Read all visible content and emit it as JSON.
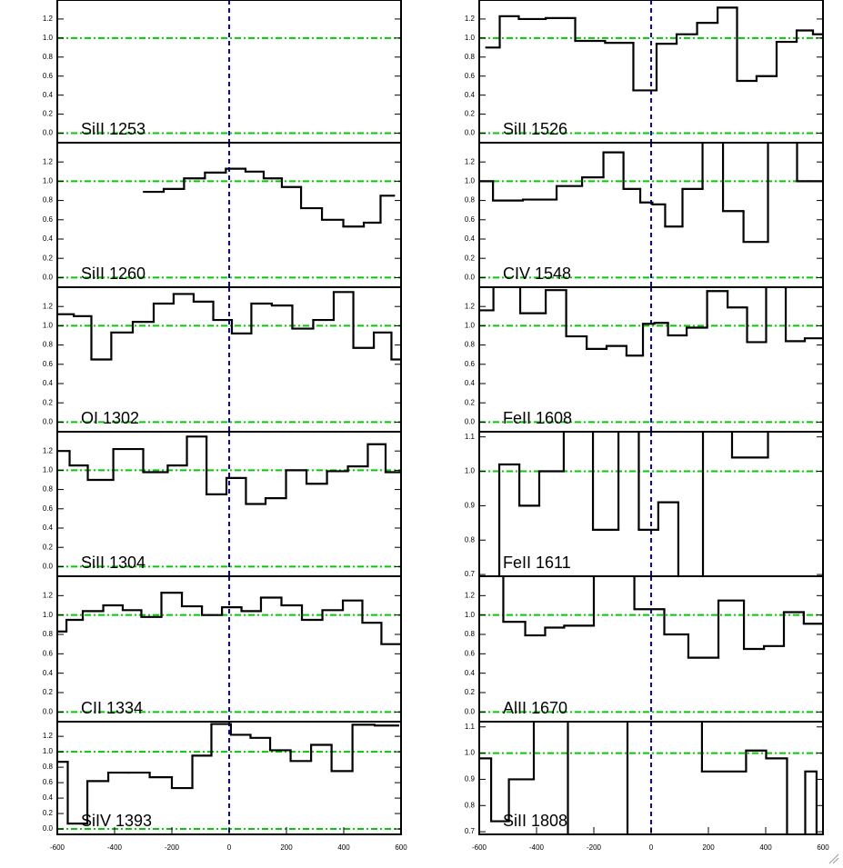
{
  "chart_data": [
    {
      "type": "line",
      "step": true,
      "label": "SiII 1253",
      "color": "#000000",
      "xlim": [
        -600,
        600
      ],
      "ylim": [
        -0.1,
        1.4
      ],
      "yticks": [
        {
          "value": 0,
          "label": "0.0"
        },
        0.2,
        0.4,
        0.6,
        0.8,
        {
          "value": 1,
          "label": "1.0"
        },
        1.2
      ],
      "hlines": [
        0,
        1
      ],
      "vline": 0,
      "x": [],
      "values": []
    },
    {
      "type": "line",
      "step": true,
      "label": "SiII 1526",
      "color": "#000000",
      "xlim": [
        -600,
        600
      ],
      "ylim": [
        -0.1,
        1.4
      ],
      "yticks": [
        {
          "value": 0,
          "label": "0.0"
        },
        0.2,
        0.4,
        0.6,
        0.8,
        {
          "value": 1,
          "label": "1.0"
        },
        1.2
      ],
      "hlines": [
        0,
        1
      ],
      "vline": 0,
      "x": [
        -552,
        -505,
        -419,
        -317,
        -213,
        -108,
        -16,
        54,
        124,
        197,
        267,
        333,
        403,
        473,
        543,
        587
      ],
      "values": [
        0.9,
        1.23,
        1.2,
        1.21,
        0.97,
        0.95,
        0.45,
        0.94,
        1.04,
        1.16,
        1.32,
        0.55,
        0.6,
        0.96,
        1.08,
        1.04
      ]
    },
    {
      "type": "line",
      "step": true,
      "label": "SiII 1260",
      "color": "#000000",
      "xlim": [
        -600,
        600
      ],
      "ylim": [
        -0.1,
        1.4
      ],
      "yticks": [
        {
          "value": 0,
          "label": "0.0"
        },
        0.2,
        0.4,
        0.6,
        0.8,
        {
          "value": 1,
          "label": "1.0"
        },
        1.2
      ],
      "hlines": [
        0,
        1
      ],
      "vline": 0,
      "x": [
        -263,
        -194,
        -121,
        -48,
        25,
        89,
        152,
        216,
        286,
        362,
        435,
        505,
        552
      ],
      "values": [
        0.89,
        0.92,
        1.03,
        1.09,
        1.13,
        1.1,
        1.03,
        0.94,
        0.72,
        0.6,
        0.53,
        0.57,
        0.85
      ]
    },
    {
      "type": "line",
      "step": true,
      "label": "CIV 1548",
      "color": "#000000",
      "xlim": [
        -600,
        600
      ],
      "ylim": [
        -0.1,
        1.4
      ],
      "yticks": [
        {
          "value": 0,
          "label": "0.0"
        },
        0.2,
        0.4,
        0.6,
        0.8,
        {
          "value": 1,
          "label": "1.0"
        },
        1.2
      ],
      "hlines": [
        0,
        1
      ],
      "vline": 0,
      "x": [
        -590,
        -514,
        -381,
        -279,
        -203,
        -130,
        -63,
        -13,
        22,
        76,
        143,
        216,
        286,
        359,
        457,
        562
      ],
      "values": [
        1.0,
        0.8,
        0.81,
        0.95,
        1.04,
        1.3,
        0.92,
        0.78,
        0.76,
        0.53,
        0.92,
        1.6,
        0.69,
        0.37,
        1.6,
        1.0
      ]
    },
    {
      "type": "line",
      "step": true,
      "label": "OI 1302",
      "color": "#000000",
      "xlim": [
        -600,
        600
      ],
      "ylim": [
        -0.1,
        1.4
      ],
      "yticks": [
        {
          "value": 0,
          "label": "0.0"
        },
        0.2,
        0.4,
        0.6,
        0.8,
        {
          "value": 1,
          "label": "1.0"
        },
        1.2
      ],
      "hlines": [
        0,
        1
      ],
      "vline": 0,
      "x": [
        -571,
        -514,
        -448,
        -375,
        -298,
        -229,
        -159,
        -89,
        -22,
        41,
        114,
        184,
        257,
        330,
        400,
        467,
        543,
        590
      ],
      "values": [
        1.12,
        1.1,
        0.65,
        0.93,
        1.04,
        1.23,
        1.33,
        1.25,
        1.06,
        0.92,
        1.23,
        1.21,
        0.97,
        1.06,
        1.35,
        0.77,
        0.93,
        0.65
      ]
    },
    {
      "type": "line",
      "step": true,
      "label": "FeII 1608",
      "color": "#000000",
      "xlim": [
        -600,
        600
      ],
      "ylim": [
        -0.1,
        1.4
      ],
      "yticks": [
        {
          "value": 0,
          "label": "0.0"
        },
        0.2,
        0.4,
        0.6,
        0.8,
        {
          "value": 1,
          "label": "1.0"
        },
        1.2
      ],
      "hlines": [
        0,
        1
      ],
      "vline": 0,
      "x": [
        -590,
        -511,
        -403,
        -333,
        -260,
        -190,
        -121,
        -51,
        -6,
        29,
        89,
        159,
        232,
        302,
        368,
        435,
        505,
        568
      ],
      "values": [
        1.16,
        1.6,
        1.13,
        1.37,
        0.89,
        0.76,
        0.79,
        0.69,
        1.02,
        1.03,
        0.9,
        0.98,
        1.36,
        1.19,
        0.83,
        1.6,
        0.84,
        0.87
      ]
    },
    {
      "type": "line",
      "step": true,
      "label": "SiII 1304",
      "color": "#000000",
      "xlim": [
        -600,
        600
      ],
      "ylim": [
        -0.1,
        1.4
      ],
      "yticks": [
        {
          "value": 0,
          "label": "0.0"
        },
        0.2,
        0.4,
        0.6,
        0.8,
        {
          "value": 1,
          "label": "1.0"
        },
        1.2
      ],
      "hlines": [
        0,
        1
      ],
      "vline": 0,
      "x": [
        -584,
        -530,
        -457,
        -352,
        -248,
        -181,
        -114,
        -44,
        25,
        92,
        162,
        235,
        305,
        378,
        451,
        517,
        575
      ],
      "values": [
        1.2,
        1.05,
        0.9,
        1.22,
        0.98,
        1.05,
        1.35,
        0.75,
        0.92,
        0.65,
        0.71,
        1.0,
        0.86,
        0.99,
        1.04,
        1.27,
        0.98
      ]
    },
    {
      "type": "line",
      "step": true,
      "label": "FeII 1611",
      "color": "#000000",
      "xlim": [
        -600,
        600
      ],
      "ylim": [
        0.695,
        1.115
      ],
      "yticks": [
        0.7,
        0.8,
        0.9,
        {
          "value": 1,
          "label": "1.0"
        },
        1.1
      ],
      "hlines": [
        1
      ],
      "vline": 0,
      "x": [
        -565,
        -495,
        -425,
        -356,
        -254,
        -152,
        -76,
        -10,
        60,
        130,
        232,
        333,
        483
      ],
      "values": [
        0.6,
        1.02,
        0.9,
        1.0,
        1.2,
        0.83,
        1.2,
        0.83,
        0.91,
        0.6,
        1.2,
        1.04,
        1.2
      ]
    },
    {
      "type": "line",
      "step": true,
      "label": "CII 1334",
      "color": "#000000",
      "xlim": [
        -600,
        600
      ],
      "ylim": [
        -0.1,
        1.4
      ],
      "yticks": [
        {
          "value": 0,
          "label": "0.0"
        },
        0.2,
        0.4,
        0.6,
        0.8,
        {
          "value": 1,
          "label": "1.0"
        },
        1.2
      ],
      "hlines": [
        0,
        1
      ],
      "vline": 0,
      "x": [
        -590,
        -546,
        -476,
        -403,
        -340,
        -273,
        -200,
        -130,
        -60,
        10,
        76,
        146,
        219,
        289,
        362,
        432,
        498,
        565
      ],
      "values": [
        0.83,
        0.95,
        1.04,
        1.1,
        1.05,
        0.98,
        1.23,
        1.09,
        1.0,
        1.08,
        1.04,
        1.18,
        1.1,
        0.95,
        1.05,
        1.15,
        0.92,
        0.7
      ]
    },
    {
      "type": "line",
      "step": true,
      "label": "AlII 1670",
      "color": "#000000",
      "xlim": [
        -600,
        600
      ],
      "ylim": [
        -0.1,
        1.4
      ],
      "yticks": [
        {
          "value": 0,
          "label": "0.0"
        },
        0.2,
        0.4,
        0.6,
        0.8,
        {
          "value": 1,
          "label": "1.0"
        },
        1.2
      ],
      "hlines": [
        0,
        1
      ],
      "vline": 0,
      "x": [
        -556,
        -476,
        -403,
        -337,
        -270,
        -130,
        13,
        79,
        181,
        289,
        359,
        429,
        498,
        568
      ],
      "values": [
        1.6,
        0.93,
        0.79,
        0.87,
        0.89,
        1.6,
        1.06,
        0.8,
        0.56,
        1.15,
        0.65,
        0.68,
        1.03,
        0.91
      ]
    },
    {
      "type": "line",
      "step": true,
      "label": "SiIV 1393",
      "color": "#000000",
      "xlim": [
        -600,
        600
      ],
      "ylim": [
        -0.07,
        1.39
      ],
      "yticks": [
        {
          "value": 0,
          "label": "0.0"
        },
        0.2,
        0.4,
        0.6,
        0.8,
        {
          "value": 1,
          "label": "1.0"
        },
        1.2
      ],
      "xticks": [
        -600,
        -400,
        -200,
        0,
        200,
        400,
        600
      ],
      "hlines": [
        0,
        1
      ],
      "vline": 0,
      "x": [
        -594,
        -533,
        -457,
        -387,
        -317,
        -238,
        -162,
        -95,
        -29,
        41,
        108,
        178,
        251,
        321,
        394,
        467,
        549
      ],
      "values": [
        0.87,
        0.07,
        0.62,
        0.73,
        0.73,
        0.67,
        0.53,
        0.95,
        1.36,
        1.22,
        1.18,
        1.02,
        0.88,
        1.09,
        0.75,
        1.35,
        1.34
      ]
    },
    {
      "type": "line",
      "step": true,
      "label": "SiII 1808",
      "color": "#000000",
      "xlim": [
        -600,
        600
      ],
      "ylim": [
        0.69,
        1.12
      ],
      "yticks": [
        0.7,
        0.8,
        0.9,
        {
          "value": 1,
          "label": "1.0"
        },
        1.1
      ],
      "xticks": [
        -600,
        -400,
        -200,
        0,
        200,
        400,
        600
      ],
      "hlines": [
        1
      ],
      "vline": 0,
      "x": [
        -584,
        -533,
        -460,
        -359,
        -222,
        57,
        298,
        365,
        438,
        511,
        565,
        590
      ],
      "values": [
        0.98,
        0.74,
        0.9,
        1.2,
        0.6,
        1.2,
        0.93,
        1.01,
        0.98,
        0.6,
        0.93,
        0.6
      ]
    }
  ]
}
